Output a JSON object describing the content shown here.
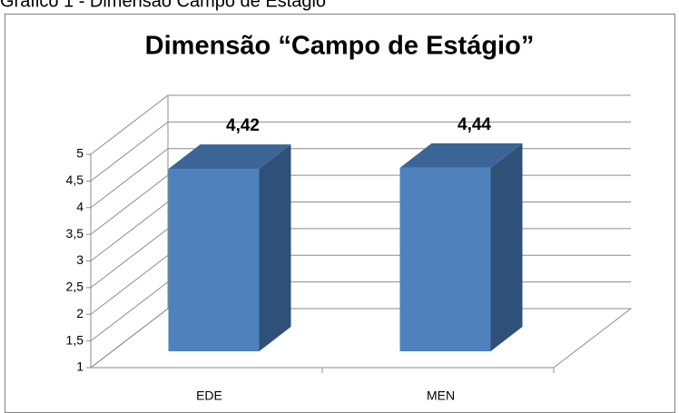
{
  "caption": "Gráfico 1 - Dimensão Campo de Estágio",
  "chart_data": {
    "type": "bar3d",
    "title": "Dimensão “Campo de Estágio”",
    "categories": [
      "EDE",
      "MEN"
    ],
    "values": [
      4.42,
      4.44
    ],
    "value_labels": [
      "4,42",
      "4,44"
    ],
    "color": "#4f81bd",
    "ylim": [
      1,
      5
    ],
    "yticks": [
      1,
      {
        "value": 1.5,
        "label": "1,5"
      },
      2,
      {
        "value": 2.5,
        "label": "2,5"
      },
      3,
      {
        "value": 3.5,
        "label": "3,5"
      },
      4,
      {
        "value": 4.5,
        "label": "4,5"
      },
      5
    ],
    "grid": true
  }
}
